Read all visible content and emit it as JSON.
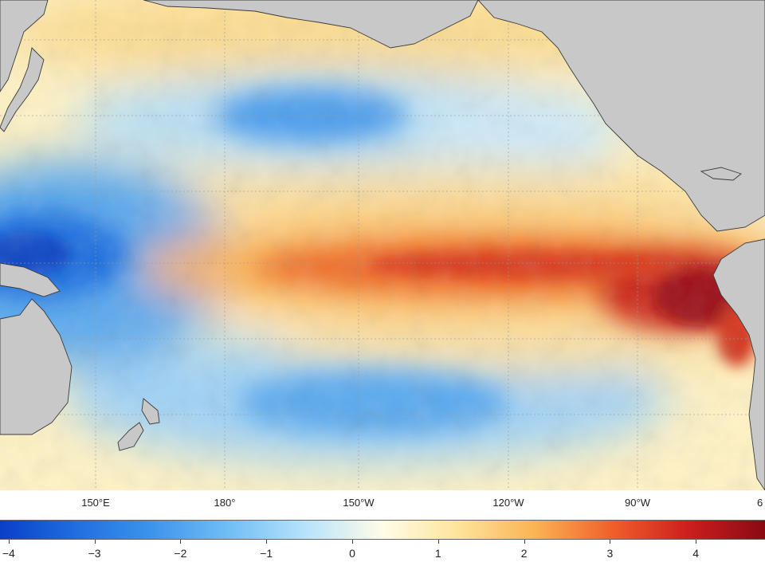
{
  "map": {
    "lon_labels": [
      "150°E",
      "180°",
      "150°W",
      "120°W",
      "90°W",
      "6"
    ],
    "colors": {
      "land": "#c8c8c8",
      "coast": "#3a3a3a",
      "grid": "#9a9a9a"
    }
  },
  "colorbar": {
    "min": -5,
    "max": 5,
    "tick_labels": [
      "−4",
      "−3",
      "−2",
      "−1",
      "0",
      "1",
      "2",
      "3",
      "4"
    ],
    "stops": [
      {
        "value": -5,
        "color": "#0a3fc8"
      },
      {
        "value": -4,
        "color": "#1e6fe0"
      },
      {
        "value": -3,
        "color": "#3d95ec"
      },
      {
        "value": -2,
        "color": "#72bef5"
      },
      {
        "value": -1,
        "color": "#b8e3fb"
      },
      {
        "value": 0,
        "color": "#fffce8"
      },
      {
        "value": 1,
        "color": "#fde49a"
      },
      {
        "value": 2,
        "color": "#fbb253"
      },
      {
        "value": 3,
        "color": "#f0602a"
      },
      {
        "value": 4,
        "color": "#cc1e1e"
      },
      {
        "value": 5,
        "color": "#8a0a12"
      }
    ]
  }
}
